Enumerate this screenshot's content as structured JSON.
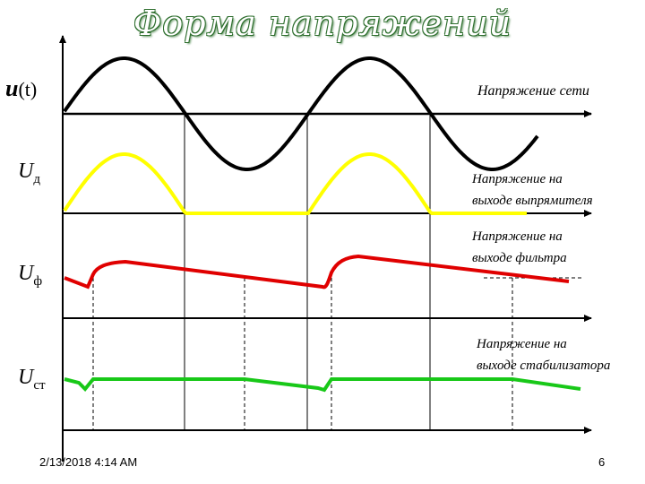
{
  "title": "Форма   напряжений",
  "labels": {
    "u_main": "u",
    "u_main_suffix": "(t)",
    "u_d": "U",
    "u_d_sub": "д",
    "u_f": "U",
    "u_f_sub": "ф",
    "u_st": "U",
    "u_st_sub": "ст"
  },
  "annotations": {
    "mains": "Напряжение сети",
    "rectifier_line1": "Напряжение на",
    "rectifier_line2": "выходе выпрямителя",
    "filter_line1": "Напряжение на",
    "filter_line2": "выходе фильтра",
    "stabilizer_line1": "Напряжение на",
    "stabilizer_line2": "выходе стабилизатора"
  },
  "footer": {
    "date": "2/13/2018 4:14 AM",
    "page": "6"
  },
  "colors": {
    "mains": "#000000",
    "rectifier": "#ffff00",
    "filter": "#e00000",
    "stabilizer": "#18c818",
    "axis": "#000000",
    "guides": "#000000"
  }
}
